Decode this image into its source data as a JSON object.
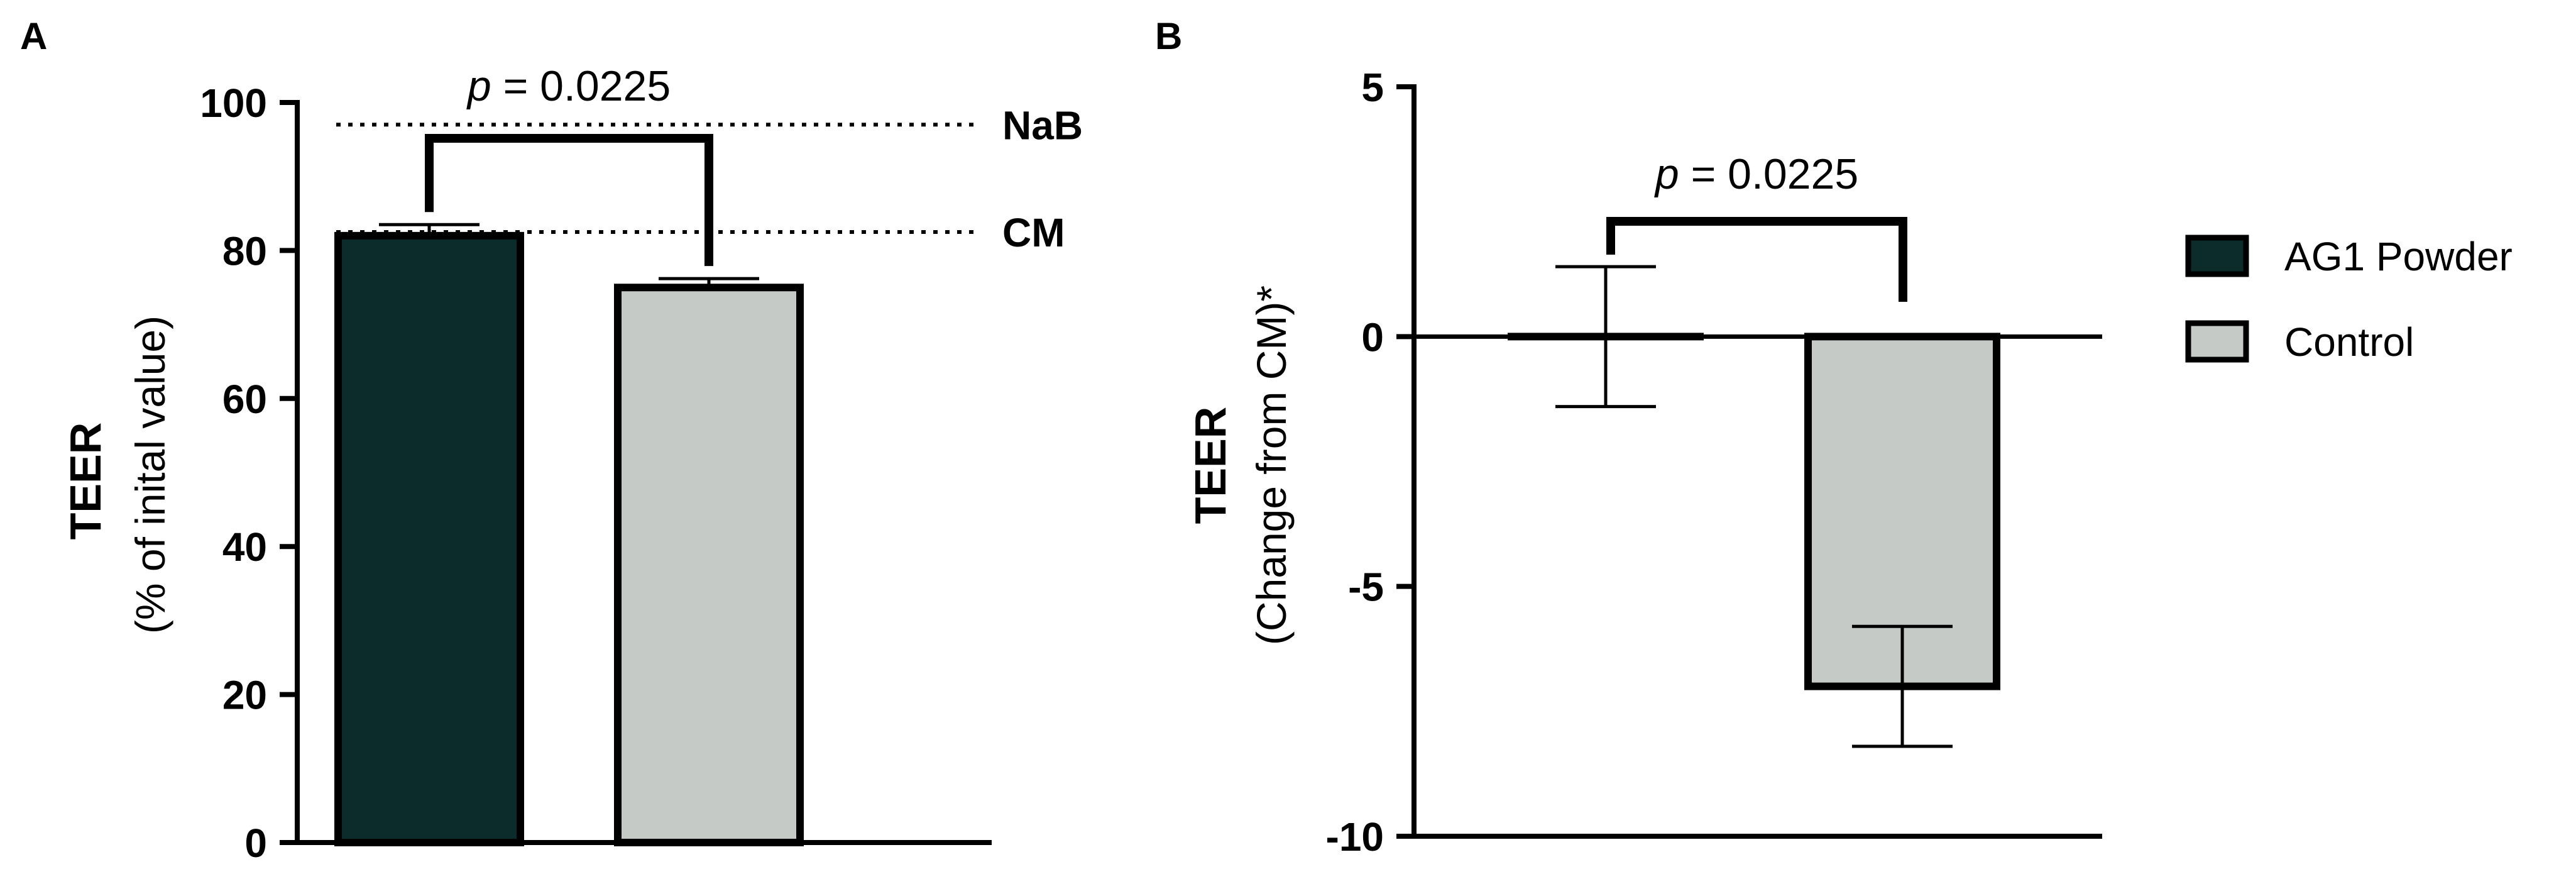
{
  "chart_data": [
    {
      "panel": "A",
      "type": "bar",
      "ylabel": "TEER",
      "ylabel_sub": "(% of inital value)",
      "ylim": [
        0,
        100
      ],
      "yticks": [
        0,
        20,
        40,
        60,
        80,
        100
      ],
      "series": [
        {
          "name": "AG1 Powder",
          "value": 82,
          "error": 1.5
        },
        {
          "name": "Control",
          "value": 75,
          "error": 1.2
        }
      ],
      "reference_lines": [
        {
          "label": "NaB",
          "value": 97
        },
        {
          "label": "CM",
          "value": 82.5
        }
      ],
      "significance": {
        "p_prefix": "p",
        "p_rest": " = 0.0225"
      }
    },
    {
      "panel": "B",
      "type": "bar",
      "ylabel": "TEER",
      "ylabel_sub": "(Change from CM)*",
      "ylim": [
        -10,
        5
      ],
      "yticks": [
        5,
        0,
        -5,
        -10
      ],
      "series": [
        {
          "name": "AG1 Powder",
          "value": 0,
          "error": 1.4
        },
        {
          "name": "Control",
          "value": -7,
          "error": 1.2
        }
      ],
      "significance": {
        "p_prefix": "p",
        "p_rest": " = 0.0225"
      }
    }
  ],
  "legend": {
    "items": [
      {
        "label": "AG1 Powder",
        "color": "#0c2b2b"
      },
      {
        "label": "Control",
        "color": "#c6cac6"
      }
    ]
  },
  "colors": {
    "ag1": "#0c2b2b",
    "control": "#c6cac6",
    "axis": "#000000"
  }
}
